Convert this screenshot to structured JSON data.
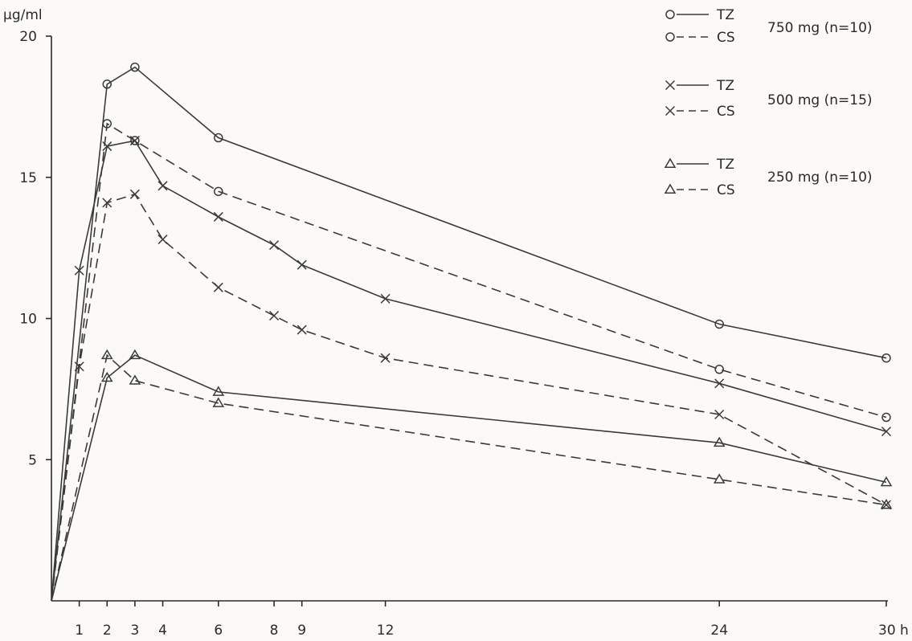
{
  "chart_data": {
    "type": "line",
    "ylabel": "µg/ml",
    "xunit": "h",
    "xlim": [
      0,
      30
    ],
    "ylim": [
      0,
      20
    ],
    "x_ticks": [
      1,
      2,
      3,
      4,
      6,
      8,
      9,
      12,
      24,
      30
    ],
    "y_ticks": [
      5,
      10,
      15,
      20
    ],
    "grid": false,
    "legend_position": "top-right",
    "groups": [
      {
        "dose": "750 mg (n=10)",
        "series": [
          "tz750",
          "cs750"
        ]
      },
      {
        "dose": "500 mg (n=15)",
        "series": [
          "tz500",
          "cs500"
        ]
      },
      {
        "dose": "250 mg (n=10)",
        "series": [
          "tz250",
          "cs250"
        ]
      }
    ],
    "series": [
      {
        "id": "tz750",
        "name": "TZ",
        "marker": "circle",
        "line": "solid",
        "points": [
          [
            0,
            0
          ],
          [
            2,
            18.3
          ],
          [
            3,
            18.9
          ],
          [
            6,
            16.4
          ],
          [
            24,
            9.8
          ],
          [
            30,
            8.6
          ]
        ]
      },
      {
        "id": "cs750",
        "name": "CS",
        "marker": "circle",
        "line": "dashed",
        "points": [
          [
            0,
            0
          ],
          [
            2,
            16.9
          ],
          [
            3,
            16.3
          ],
          [
            6,
            14.5
          ],
          [
            24,
            8.2
          ],
          [
            30,
            6.5
          ]
        ]
      },
      {
        "id": "tz500",
        "name": "TZ",
        "marker": "cross",
        "line": "solid",
        "points": [
          [
            0,
            0
          ],
          [
            1,
            11.7
          ],
          [
            2,
            16.1
          ],
          [
            3,
            16.3
          ],
          [
            4,
            14.7
          ],
          [
            6,
            13.6
          ],
          [
            8,
            12.6
          ],
          [
            9,
            11.9
          ],
          [
            12,
            10.7
          ],
          [
            24,
            7.7
          ],
          [
            30,
            6.0
          ]
        ]
      },
      {
        "id": "cs500",
        "name": "CS",
        "marker": "cross",
        "line": "dashed",
        "points": [
          [
            0,
            0
          ],
          [
            1,
            8.3
          ],
          [
            2,
            14.1
          ],
          [
            3,
            14.4
          ],
          [
            4,
            12.8
          ],
          [
            6,
            11.1
          ],
          [
            8,
            10.1
          ],
          [
            9,
            9.6
          ],
          [
            12,
            8.6
          ],
          [
            24,
            6.6
          ],
          [
            30,
            3.4
          ]
        ]
      },
      {
        "id": "tz250",
        "name": "TZ",
        "marker": "triangle",
        "line": "solid",
        "points": [
          [
            0,
            0
          ],
          [
            2,
            7.9
          ],
          [
            3,
            8.7
          ],
          [
            6,
            7.4
          ],
          [
            24,
            5.6
          ],
          [
            30,
            4.2
          ]
        ]
      },
      {
        "id": "cs250",
        "name": "CS",
        "marker": "triangle",
        "line": "dashed",
        "points": [
          [
            0,
            0
          ],
          [
            2,
            8.7
          ],
          [
            3,
            7.8
          ],
          [
            6,
            7.0
          ],
          [
            24,
            4.3
          ],
          [
            30,
            3.4
          ]
        ]
      }
    ]
  }
}
